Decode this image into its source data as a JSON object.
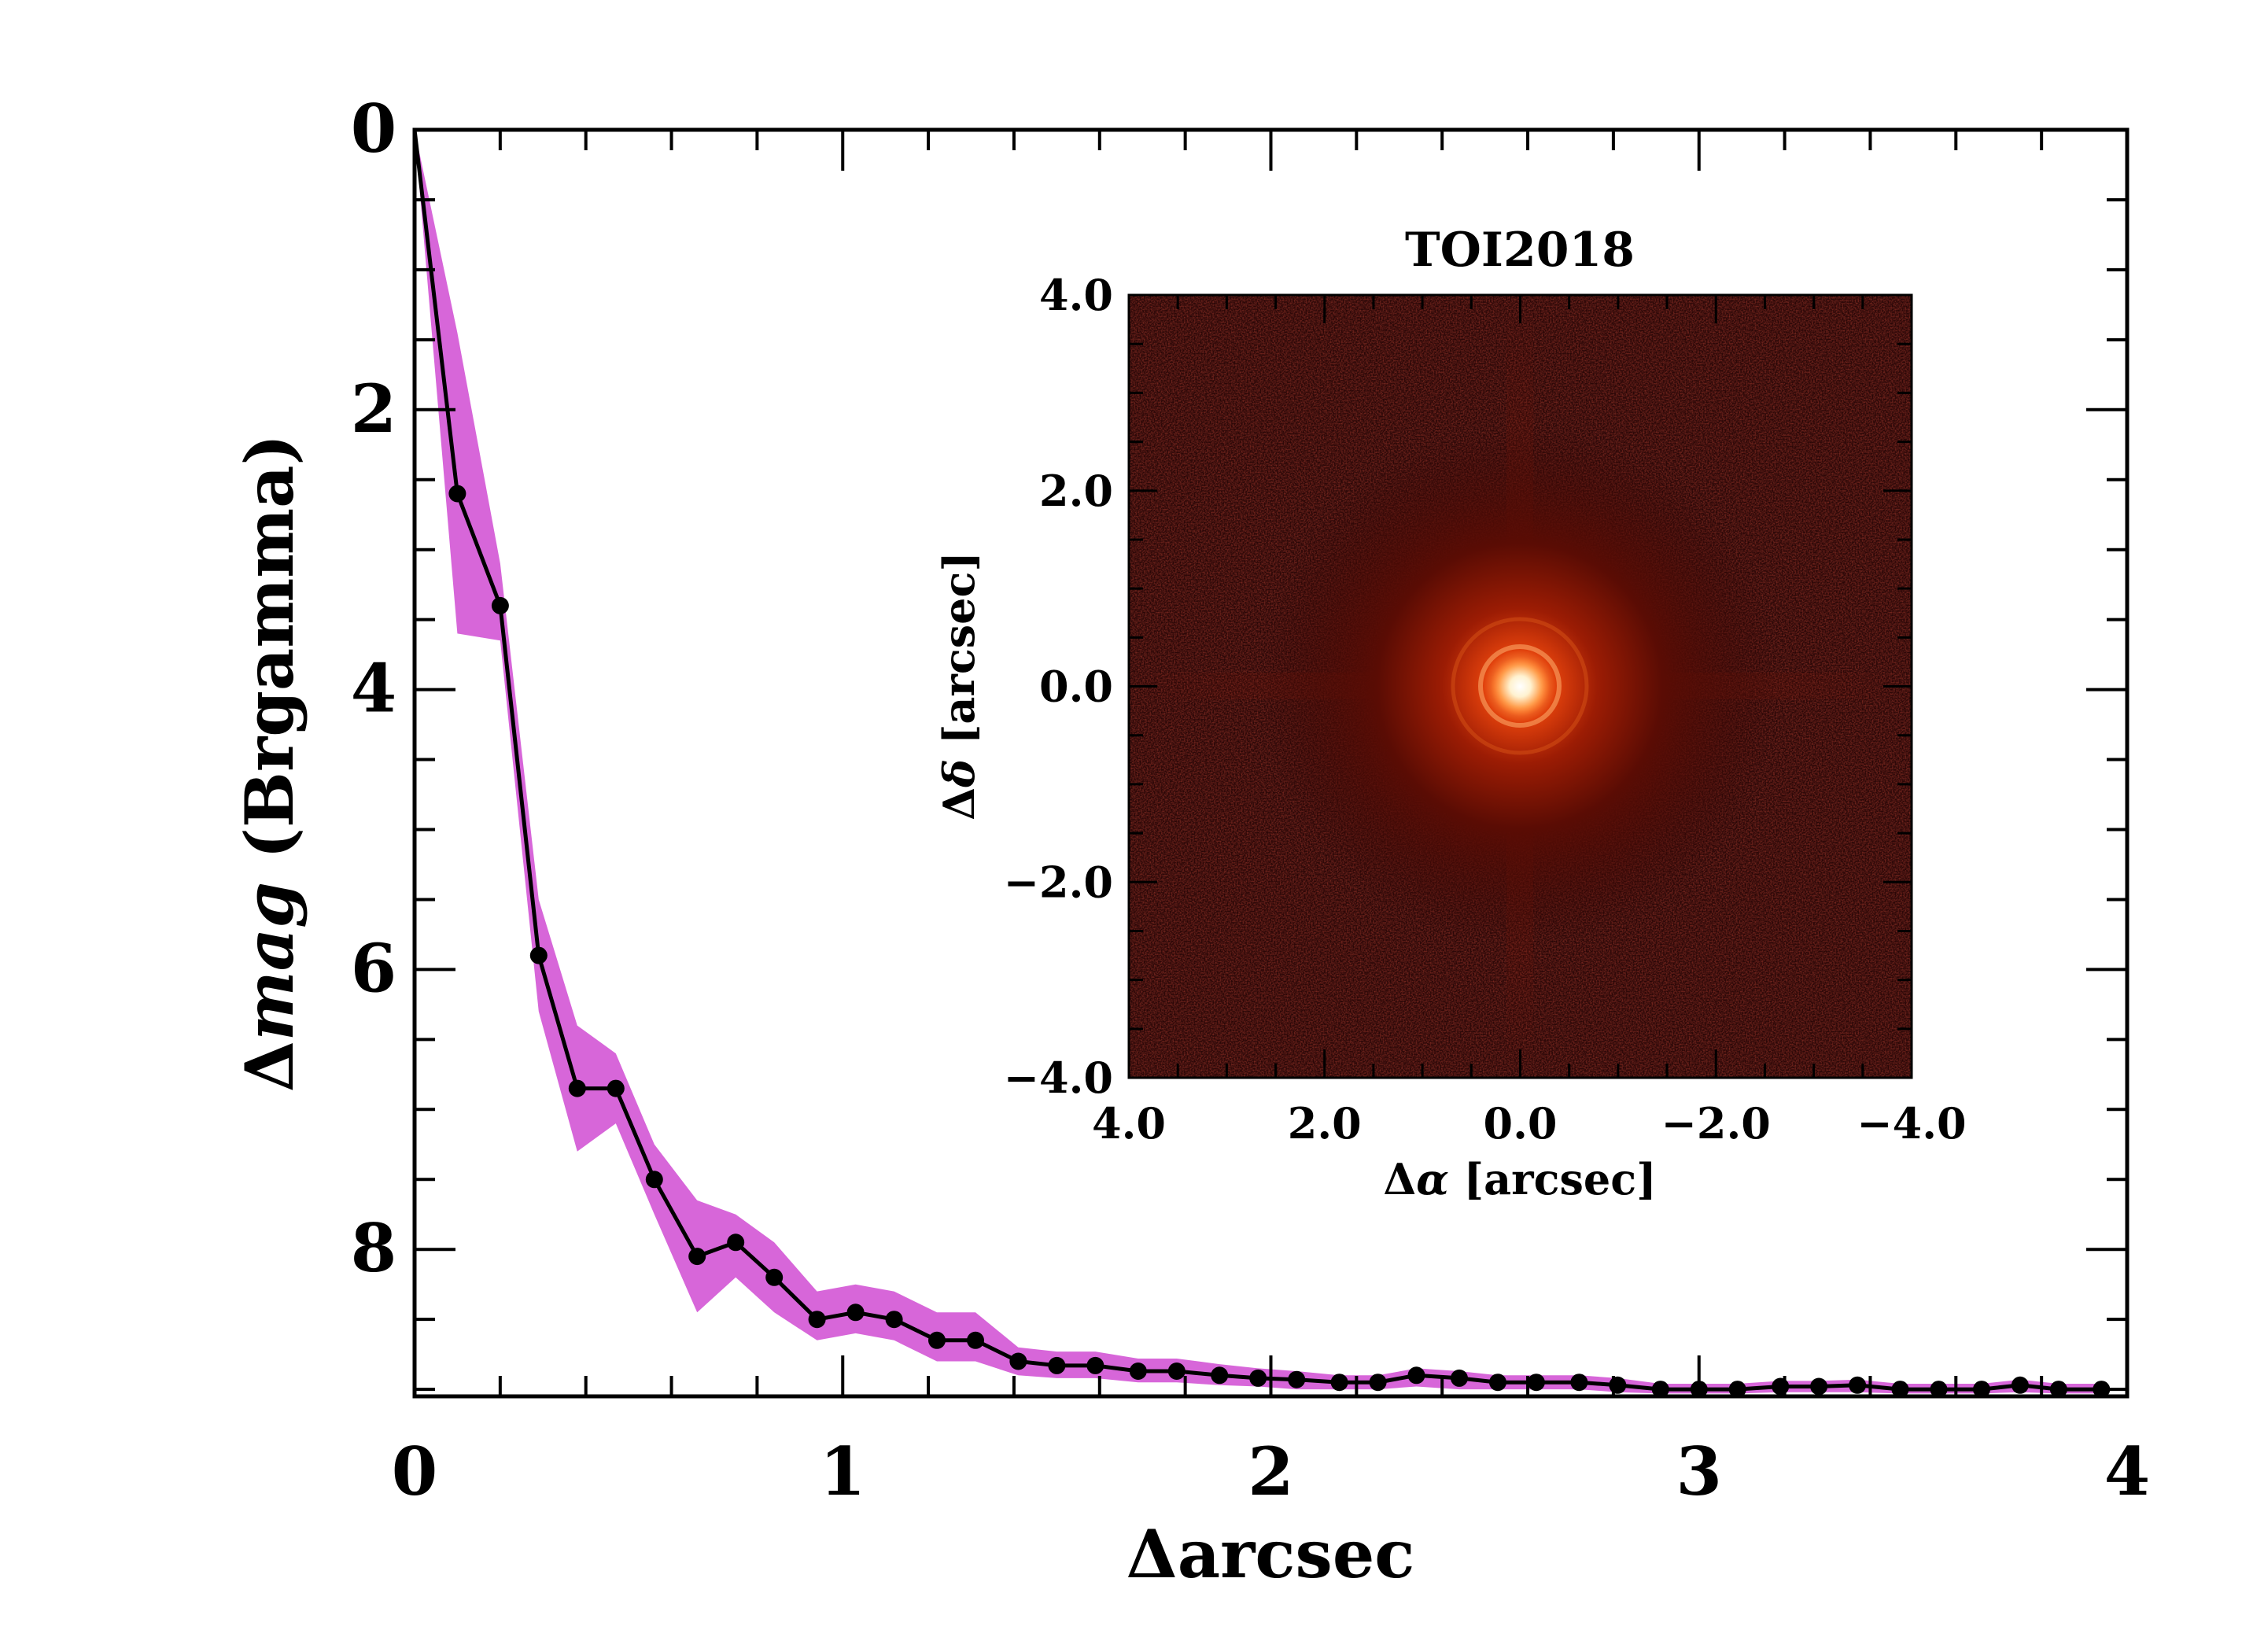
{
  "chart_data": [
    {
      "type": "line",
      "title": "",
      "xlabel": "Δarcsec",
      "ylabel_prefix": "Δ",
      "ylabel_italic": "mag",
      "ylabel_suffix": " (Brgamma)",
      "xlim": [
        0,
        4
      ],
      "ylim": [
        9.05,
        0
      ],
      "y_inverted": true,
      "x_ticks": [
        "0",
        "1",
        "2",
        "3",
        "4"
      ],
      "y_ticks": [
        "0",
        "2",
        "4",
        "6",
        "8"
      ],
      "colors": {
        "band": "#d766d9",
        "line": "#000000"
      },
      "series": [
        {
          "x": [
            0.0,
            0.1,
            0.2,
            0.29,
            0.38,
            0.47,
            0.56,
            0.66,
            0.75,
            0.84,
            0.94,
            1.03,
            1.12,
            1.22,
            1.31,
            1.41,
            1.5,
            1.59,
            1.69,
            1.78,
            1.88,
            1.97,
            2.06,
            2.16,
            2.25,
            2.34,
            2.44,
            2.53,
            2.62,
            2.72,
            2.81,
            2.91,
            3.0,
            3.09,
            3.19,
            3.28,
            3.37,
            3.47,
            3.56,
            3.66,
            3.75,
            3.84,
            3.94
          ],
          "y": [
            0.0,
            2.6,
            3.4,
            5.9,
            6.85,
            6.85,
            7.5,
            8.05,
            7.95,
            8.2,
            8.5,
            8.45,
            8.5,
            8.65,
            8.65,
            8.8,
            8.83,
            8.83,
            8.87,
            8.87,
            8.9,
            8.92,
            8.93,
            8.95,
            8.95,
            8.9,
            8.92,
            8.95,
            8.95,
            8.95,
            8.97,
            9.0,
            9.0,
            9.0,
            8.98,
            8.98,
            8.97,
            9.0,
            9.0,
            9.0,
            8.97,
            9.0,
            9.0
          ],
          "band_lower": [
            0.0,
            3.6,
            3.65,
            6.3,
            7.3,
            7.1,
            7.75,
            8.45,
            8.2,
            8.45,
            8.65,
            8.6,
            8.65,
            8.8,
            8.8,
            8.9,
            8.92,
            8.92,
            8.95,
            8.95,
            8.97,
            8.98,
            9.0,
            9.0,
            9.0,
            8.98,
            9.0,
            9.0,
            9.0,
            9.0,
            9.02,
            9.03,
            9.03,
            9.03,
            9.02,
            9.02,
            9.02,
            9.03,
            9.03,
            9.03,
            9.02,
            9.03,
            9.03
          ],
          "band_upper": [
            0.0,
            1.45,
            3.1,
            5.5,
            6.4,
            6.6,
            7.25,
            7.65,
            7.75,
            7.95,
            8.3,
            8.25,
            8.3,
            8.45,
            8.45,
            8.7,
            8.73,
            8.73,
            8.78,
            8.78,
            8.82,
            8.85,
            8.87,
            8.9,
            8.9,
            8.85,
            8.87,
            8.9,
            8.9,
            8.9,
            8.92,
            8.96,
            8.96,
            8.96,
            8.94,
            8.94,
            8.93,
            8.96,
            8.96,
            8.96,
            8.93,
            8.96,
            8.96
          ]
        }
      ]
    },
    {
      "type": "heatmap",
      "title": "TOI2018",
      "xlabel_prefix": "Δ",
      "xlabel_symbol": "α",
      "xlabel_suffix": " [arcsec]",
      "ylabel_prefix": "Δ",
      "ylabel_symbol": "δ",
      "ylabel_suffix": " [arcsec]",
      "xlim": [
        4.0,
        -4.0
      ],
      "ylim": [
        -4.0,
        4.0
      ],
      "x_ticks": [
        "4.0",
        "2.0",
        "0.0",
        "−2.0",
        "−4.0"
      ],
      "y_ticks": [
        "4.0",
        "2.0",
        "0.0",
        "−2.0",
        "−4.0"
      ],
      "source_position": [
        0.0,
        0.0
      ],
      "colormap": [
        "#2a0606",
        "#6a0c02",
        "#c82a00",
        "#ff7a20",
        "#ffffff"
      ]
    }
  ]
}
